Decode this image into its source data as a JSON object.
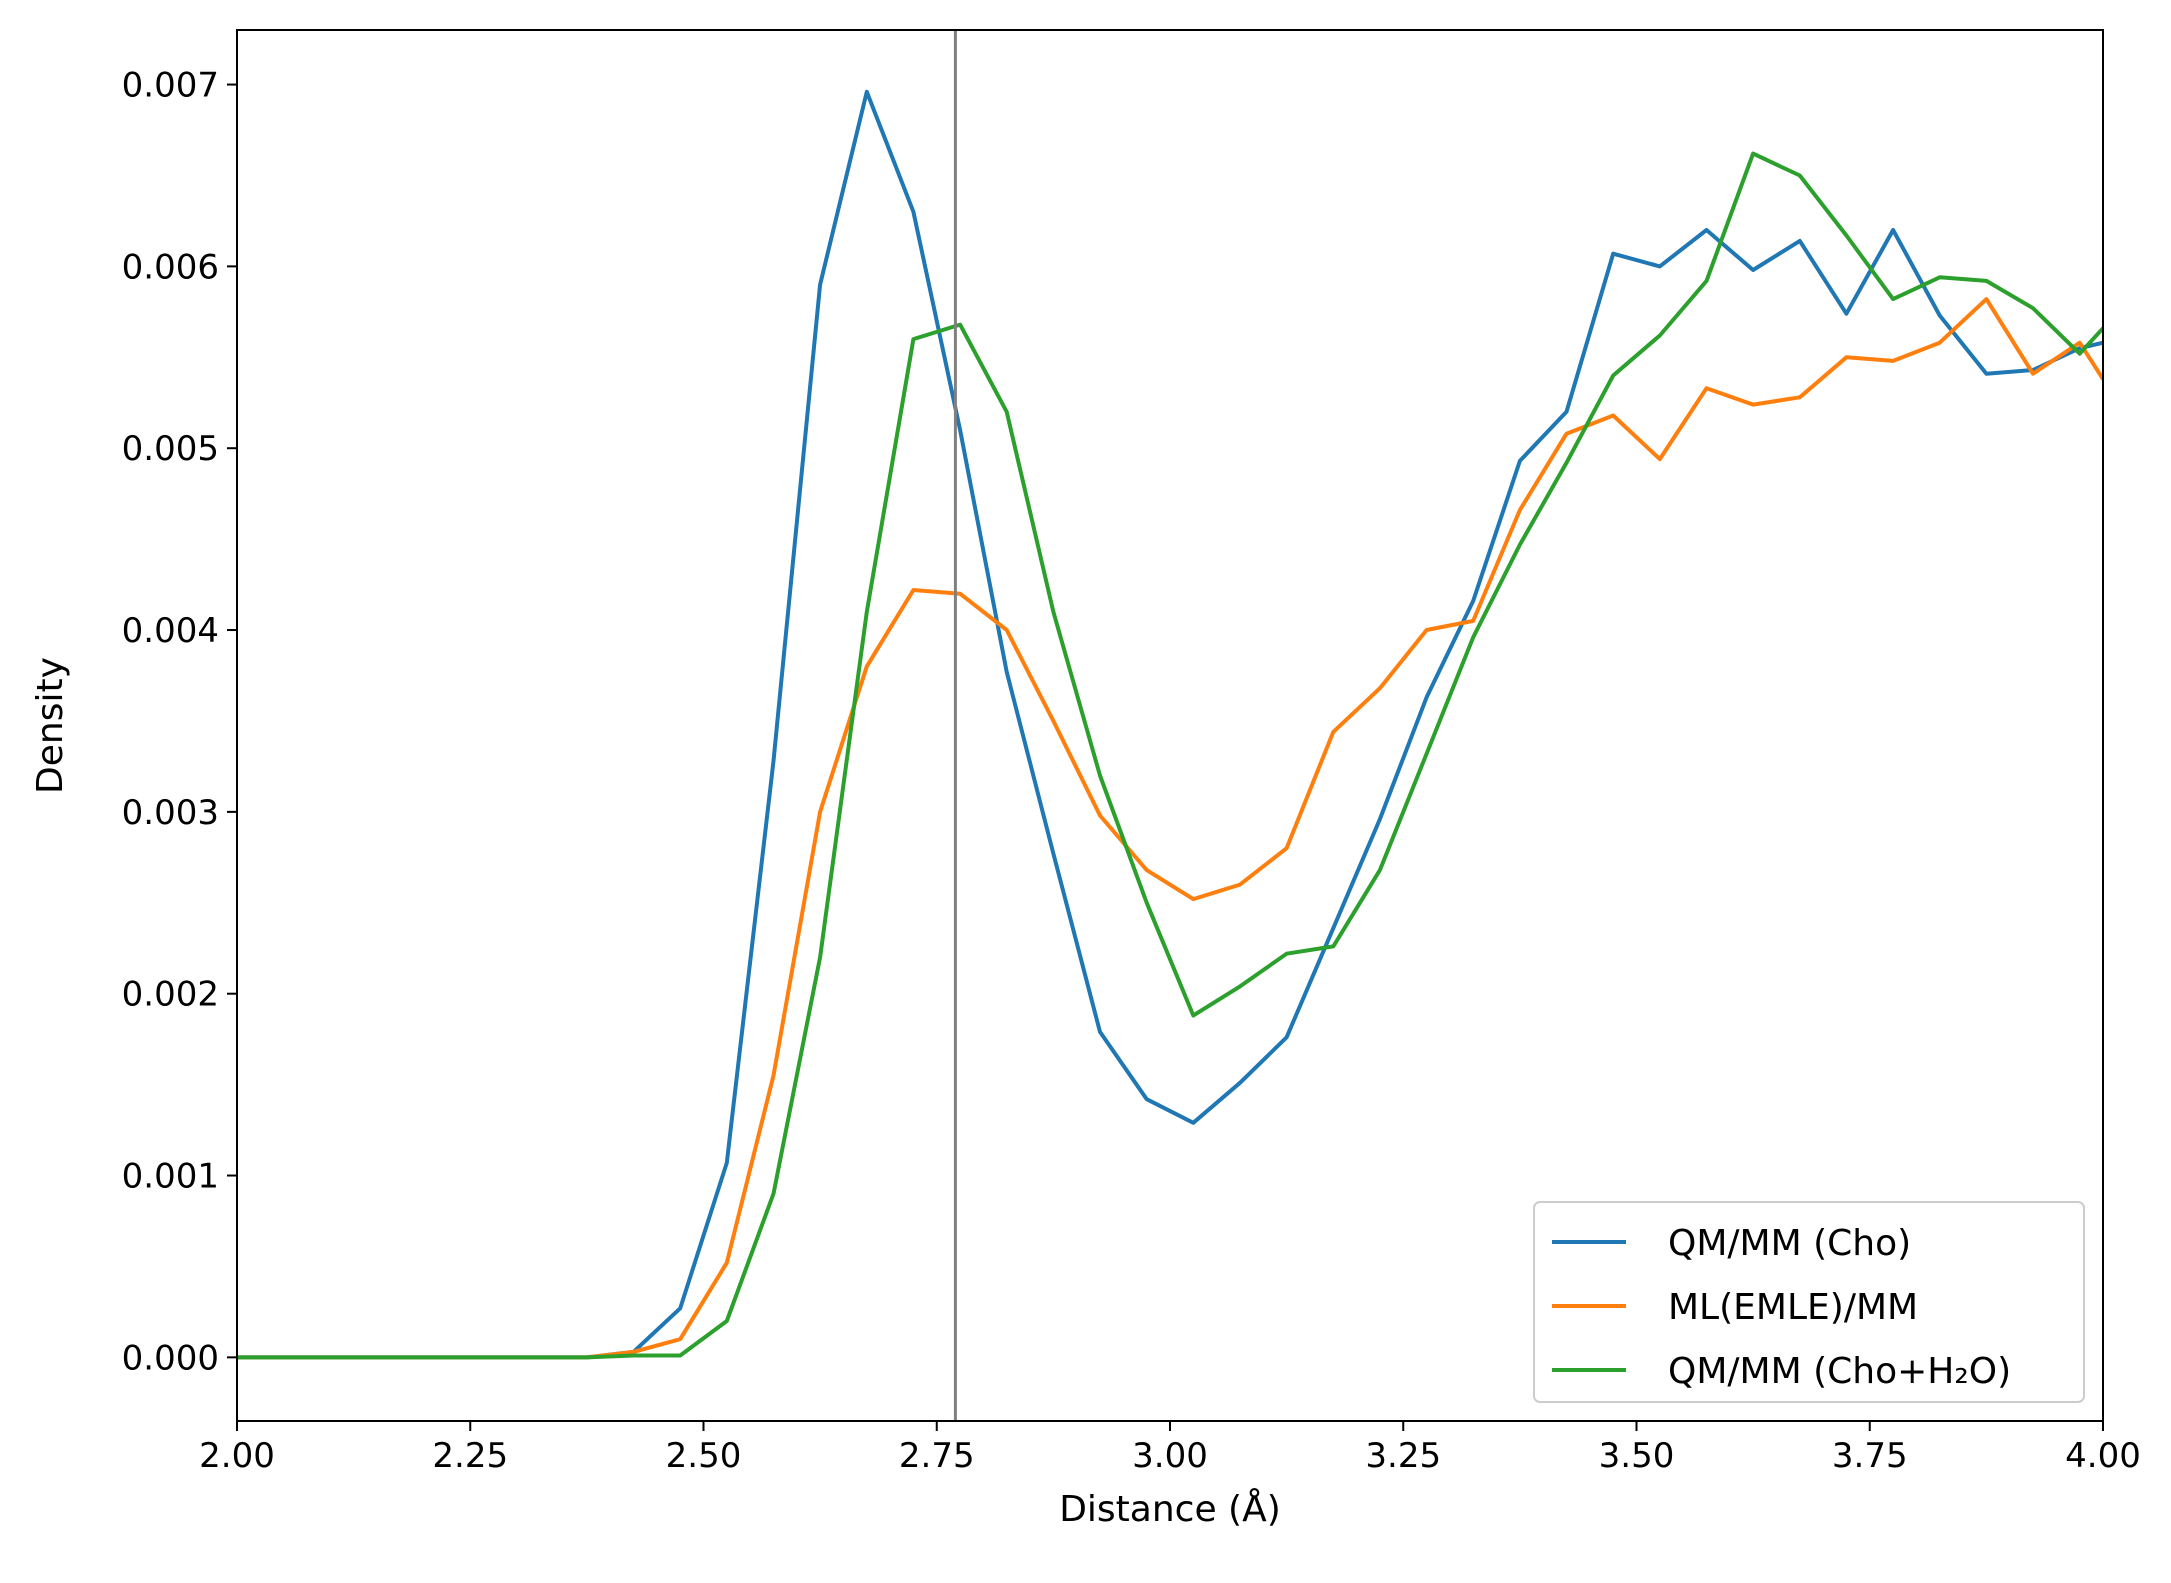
{
  "chart_data": {
    "type": "line",
    "title": "",
    "xlabel": "Distance (Å)",
    "ylabel": "Density",
    "xlim": [
      2.0,
      4.0
    ],
    "ylim": [
      -0.00035,
      0.0073
    ],
    "xticks": [
      2.0,
      2.25,
      2.5,
      2.75,
      3.0,
      3.25,
      3.5,
      3.75,
      4.0
    ],
    "xtick_labels": [
      "2.00",
      "2.25",
      "2.50",
      "2.75",
      "3.00",
      "3.25",
      "3.50",
      "3.75",
      "4.00"
    ],
    "yticks": [
      0.0,
      0.001,
      0.002,
      0.003,
      0.004,
      0.005,
      0.006,
      0.007
    ],
    "ytick_labels": [
      "0.000",
      "0.001",
      "0.002",
      "0.003",
      "0.004",
      "0.005",
      "0.006",
      "0.007"
    ],
    "grid": false,
    "legend_position": "lower-right",
    "vline": {
      "x": 2.77,
      "color": "#808080"
    },
    "x": [
      2.0,
      2.025,
      2.075,
      2.125,
      2.175,
      2.225,
      2.275,
      2.325,
      2.375,
      2.425,
      2.475,
      2.525,
      2.575,
      2.625,
      2.675,
      2.725,
      2.775,
      2.825,
      2.875,
      2.925,
      2.975,
      3.025,
      3.075,
      3.125,
      3.175,
      3.225,
      3.275,
      3.325,
      3.375,
      3.425,
      3.475,
      3.525,
      3.575,
      3.625,
      3.675,
      3.725,
      3.775,
      3.825,
      3.875,
      3.925,
      3.975,
      4.0
    ],
    "series": [
      {
        "name": "QM/MM (Cho)",
        "color": "#1f77b4",
        "values": [
          0,
          0,
          0,
          0,
          0,
          0,
          0,
          0,
          0,
          3e-05,
          0.00027,
          0.00107,
          0.00328,
          0.0059,
          0.00696,
          0.0063,
          0.0051,
          0.00377,
          0.00277,
          0.00179,
          0.00142,
          0.00129,
          0.00151,
          0.00176,
          0.00236,
          0.00296,
          0.00363,
          0.00416,
          0.00493,
          0.0052,
          0.00607,
          0.006,
          0.0062,
          0.00598,
          0.00614,
          0.00574,
          0.0062,
          0.00573,
          0.00541,
          0.00543,
          0.00555,
          0.00558
        ]
      },
      {
        "name": "ML(EMLE)/MM",
        "color": "#ff7f0e",
        "values": [
          0,
          0,
          0,
          0,
          0,
          0,
          0,
          0,
          0,
          3e-05,
          0.0001,
          0.00052,
          0.00155,
          0.003,
          0.0038,
          0.00422,
          0.0042,
          0.004,
          0.0035,
          0.00298,
          0.00268,
          0.00252,
          0.0026,
          0.0028,
          0.00344,
          0.00368,
          0.004,
          0.00405,
          0.00466,
          0.00508,
          0.00518,
          0.00494,
          0.00533,
          0.00524,
          0.00528,
          0.0055,
          0.00548,
          0.00558,
          0.00582,
          0.00541,
          0.00558,
          0.00538
        ]
      },
      {
        "name": "QM/MM (Cho+H₂O)",
        "color": "#2ca02c",
        "values": [
          0,
          0,
          0,
          0,
          0,
          0,
          0,
          0,
          0,
          1e-05,
          1e-05,
          0.0002,
          0.0009,
          0.0022,
          0.0041,
          0.0056,
          0.00568,
          0.0052,
          0.0041,
          0.0032,
          0.0025,
          0.00188,
          0.00204,
          0.00222,
          0.00226,
          0.00268,
          0.00332,
          0.00396,
          0.00447,
          0.00492,
          0.0054,
          0.00562,
          0.00592,
          0.00662,
          0.0065,
          0.00617,
          0.00582,
          0.00594,
          0.00592,
          0.00577,
          0.00552,
          0.00566
        ]
      }
    ]
  }
}
